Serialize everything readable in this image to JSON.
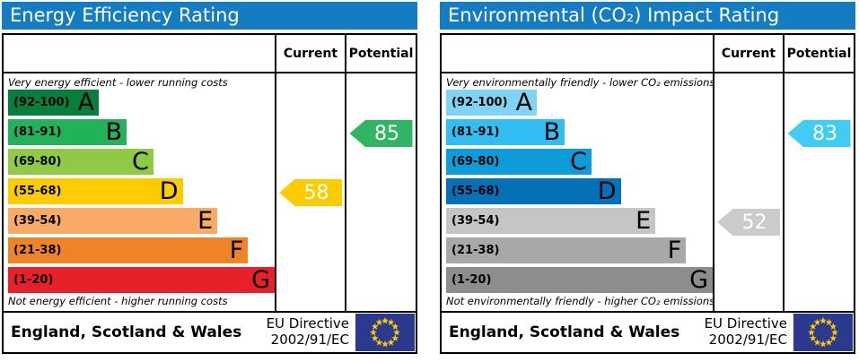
{
  "chart_data": [
    {
      "type": "bar",
      "title": "Energy Efficiency Rating",
      "columns": {
        "current": "Current",
        "potential": "Potential"
      },
      "top_note": "Very energy efficient - lower running costs",
      "bottom_note": "Not energy efficient - higher running costs",
      "categories": [
        "A",
        "B",
        "C",
        "D",
        "E",
        "F",
        "G"
      ],
      "bands": [
        {
          "letter": "A",
          "range": "(92-100)",
          "min": 92,
          "max": 100,
          "color": "#067f3d",
          "width_pct": 34
        },
        {
          "letter": "B",
          "range": "(81-91)",
          "min": 81,
          "max": 91,
          "color": "#22b25a",
          "width_pct": 44.5
        },
        {
          "letter": "C",
          "range": "(69-80)",
          "min": 69,
          "max": 80,
          "color": "#8fca45",
          "width_pct": 54.5
        },
        {
          "letter": "D",
          "range": "(55-68)",
          "min": 55,
          "max": 68,
          "color": "#fdcc00",
          "width_pct": 65.5
        },
        {
          "letter": "E",
          "range": "(39-54)",
          "min": 39,
          "max": 54,
          "color": "#f9ab66",
          "width_pct": 78.5
        },
        {
          "letter": "F",
          "range": "(21-38)",
          "min": 21,
          "max": 38,
          "color": "#ee8329",
          "width_pct": 90
        },
        {
          "letter": "G",
          "range": "(1-20)",
          "min": 1,
          "max": 20,
          "color": "#e62129",
          "width_pct": 100
        }
      ],
      "current": {
        "value": 58,
        "band": "D",
        "color": "#fdcc00"
      },
      "potential": {
        "value": 85,
        "band": "B",
        "color": "#30b564"
      },
      "footer": {
        "region": "England, Scotland & Wales",
        "directive_line1": "EU Directive",
        "directive_line2": "2002/91/EC"
      },
      "flag_colors": {
        "background": "#2b3a8f",
        "stars": "#ffcc00"
      }
    },
    {
      "type": "bar",
      "title": "Environmental (CO₂) Impact Rating",
      "columns": {
        "current": "Current",
        "potential": "Potential"
      },
      "top_note": "Very environmentally friendly - lower CO₂ emissions",
      "bottom_note": "Not environmentally friendly - higher CO₂ emissions",
      "categories": [
        "A",
        "B",
        "C",
        "D",
        "E",
        "F",
        "G"
      ],
      "bands": [
        {
          "letter": "A",
          "range": "(92-100)",
          "min": 92,
          "max": 100,
          "color": "#7fd3f4",
          "width_pct": 34
        },
        {
          "letter": "B",
          "range": "(81-91)",
          "min": 81,
          "max": 91,
          "color": "#33bef2",
          "width_pct": 44.5
        },
        {
          "letter": "C",
          "range": "(69-80)",
          "min": 69,
          "max": 80,
          "color": "#0e9bd9",
          "width_pct": 54.5
        },
        {
          "letter": "D",
          "range": "(55-68)",
          "min": 55,
          "max": 68,
          "color": "#0370b8",
          "width_pct": 65.5
        },
        {
          "letter": "E",
          "range": "(39-54)",
          "min": 39,
          "max": 54,
          "color": "#c5c5c5",
          "width_pct": 78.5
        },
        {
          "letter": "F",
          "range": "(21-38)",
          "min": 21,
          "max": 38,
          "color": "#a8a8a8",
          "width_pct": 90
        },
        {
          "letter": "G",
          "range": "(1-20)",
          "min": 1,
          "max": 20,
          "color": "#8d8d8d",
          "width_pct": 100
        }
      ],
      "current": {
        "value": 52,
        "band": "E",
        "color": "#cbcbcb"
      },
      "potential": {
        "value": 83,
        "band": "B",
        "color": "#41ccf4"
      },
      "footer": {
        "region": "England, Scotland & Wales",
        "directive_line1": "EU Directive",
        "directive_line2": "2002/91/EC"
      },
      "flag_colors": {
        "background": "#2b3a8f",
        "stars": "#ffcc00"
      }
    }
  ]
}
